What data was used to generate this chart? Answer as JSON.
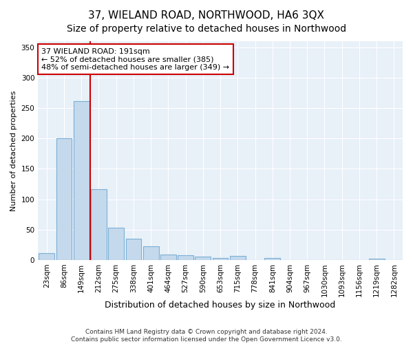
{
  "title": "37, WIELAND ROAD, NORTHWOOD, HA6 3QX",
  "subtitle": "Size of property relative to detached houses in Northwood",
  "xlabel": "Distribution of detached houses by size in Northwood",
  "ylabel": "Number of detached properties",
  "categories": [
    "23sqm",
    "86sqm",
    "149sqm",
    "212sqm",
    "275sqm",
    "338sqm",
    "401sqm",
    "464sqm",
    "527sqm",
    "590sqm",
    "653sqm",
    "715sqm",
    "778sqm",
    "841sqm",
    "904sqm",
    "967sqm",
    "1030sqm",
    "1093sqm",
    "1156sqm",
    "1219sqm",
    "1282sqm"
  ],
  "values": [
    11,
    200,
    261,
    116,
    53,
    35,
    23,
    9,
    8,
    5,
    3,
    7,
    0,
    3,
    0,
    0,
    0,
    0,
    0,
    2,
    0
  ],
  "bar_color": "#c5d9ed",
  "bar_edge_color": "#7aafd4",
  "vline_color": "#cc0000",
  "annotation_line1": "37 WIELAND ROAD: 191sqm",
  "annotation_line2": "← 52% of detached houses are smaller (385)",
  "annotation_line3": "48% of semi-detached houses are larger (349) →",
  "annotation_box_color": "#ffffff",
  "annotation_box_edge": "#cc0000",
  "ylim": [
    0,
    360
  ],
  "yticks": [
    0,
    50,
    100,
    150,
    200,
    250,
    300,
    350
  ],
  "background_color": "#e8f0f8",
  "grid_color": "#ffffff",
  "footer1": "Contains HM Land Registry data © Crown copyright and database right 2024.",
  "footer2": "Contains public sector information licensed under the Open Government Licence v3.0.",
  "title_fontsize": 11,
  "subtitle_fontsize": 10,
  "ylabel_fontsize": 8,
  "xlabel_fontsize": 9,
  "tick_fontsize": 7.5,
  "footer_fontsize": 6.5,
  "annotation_fontsize": 8
}
